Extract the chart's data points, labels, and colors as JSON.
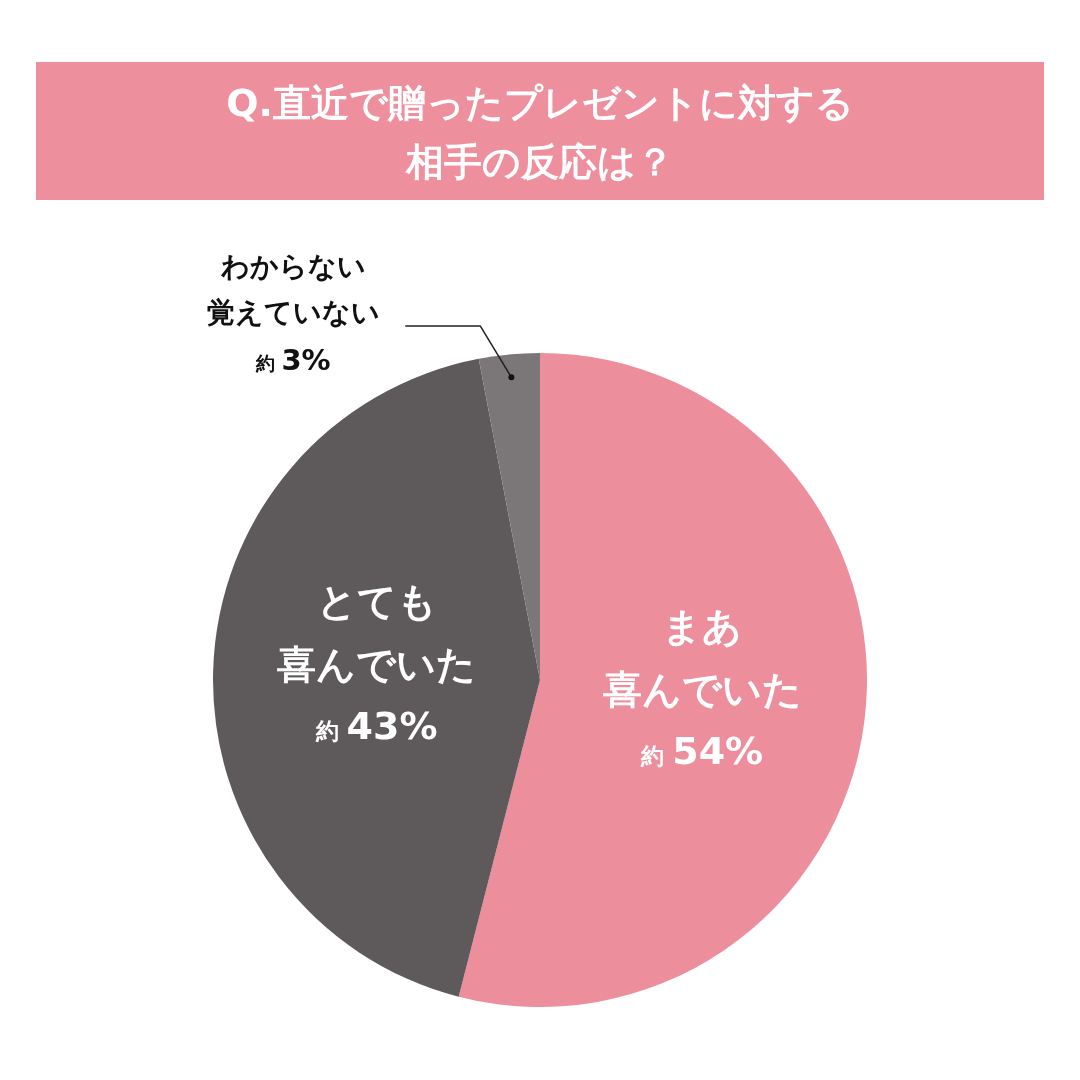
{
  "chart_data": {
    "type": "pie",
    "title": "Q.直近で贈ったプレゼントに対する相手の反応は？",
    "categories": [
      "まあ喜んでいた",
      "とても喜んでいた",
      "わからない覚えていない"
    ],
    "values": [
      54,
      43,
      3
    ],
    "colors": [
      "#ed8e9c",
      "#5e595a",
      "#7b7677"
    ],
    "value_labels": [
      "約 54%",
      "約 43%",
      "約 3%"
    ]
  }
}
